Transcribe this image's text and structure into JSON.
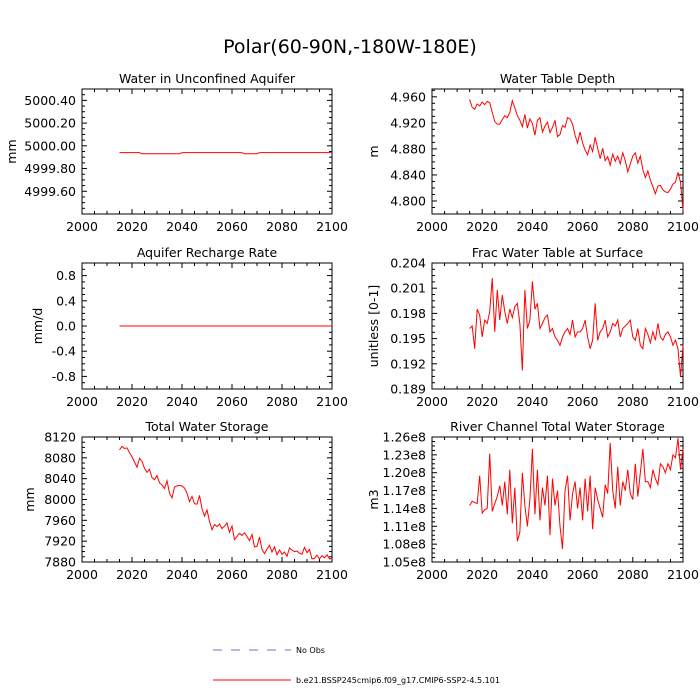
{
  "figure": {
    "title": "Polar(60-90N,-180W-180E)",
    "series_color": "#ff0000",
    "obs_color": "#7070c0"
  },
  "legend": {
    "obs_label": "No Obs",
    "model_label": "b.e21.BSSP245cmip6.f09_g17.CMIP6-SSP2-4.5.101"
  },
  "chart_data": [
    {
      "type": "line",
      "position": "top-left",
      "title": "Water in Unconfined Aquifer",
      "xlabel": "",
      "ylabel": "mm",
      "xlim": [
        2000,
        2100
      ],
      "ylim": [
        4999.4,
        5000.5
      ],
      "xticks": [
        "2000",
        "2020",
        "2040",
        "2060",
        "2080",
        "2100"
      ],
      "yticks": [
        {
          "v": 4999.6,
          "label": "4999.60"
        },
        {
          "v": 4999.8,
          "label": "4999.80"
        },
        {
          "v": 5000.0,
          "label": "5000.00"
        },
        {
          "v": 5000.2,
          "label": "5000.20"
        },
        {
          "v": 5000.4,
          "label": "5000.40"
        }
      ],
      "series": [
        {
          "name": "b.e21.BSSP245cmip6.f09_g17.CMIP6-SSP2-4.5.101",
          "x": [
            2015,
            2023,
            2024,
            2039,
            2040,
            2064,
            2065,
            2070,
            2071,
            2100
          ],
          "y": [
            4999.94,
            4999.94,
            4999.93,
            4999.93,
            4999.94,
            4999.94,
            4999.93,
            4999.93,
            4999.94,
            4999.94
          ]
        }
      ]
    },
    {
      "type": "line",
      "position": "top-right",
      "title": "Water Table Depth",
      "xlabel": "",
      "ylabel": "m",
      "xlim": [
        2000,
        2100
      ],
      "ylim": [
        4.78,
        4.972
      ],
      "xticks": [
        "2000",
        "2020",
        "2040",
        "2060",
        "2080",
        "2100"
      ],
      "yticks": [
        {
          "v": 4.8,
          "label": "4.800"
        },
        {
          "v": 4.84,
          "label": "4.840"
        },
        {
          "v": 4.88,
          "label": "4.880"
        },
        {
          "v": 4.92,
          "label": "4.920"
        },
        {
          "v": 4.96,
          "label": "4.960"
        }
      ],
      "series": [
        {
          "name": "b.e21.BSSP245cmip6.f09_g17.CMIP6-SSP2-4.5.101",
          "x": [
            2015,
            2016,
            2017,
            2018,
            2019,
            2020,
            2021,
            2022,
            2023,
            2024,
            2025,
            2026,
            2027,
            2028,
            2029,
            2030,
            2031,
            2032,
            2033,
            2034,
            2035,
            2036,
            2037,
            2038,
            2039,
            2040,
            2041,
            2042,
            2043,
            2044,
            2045,
            2046,
            2047,
            2048,
            2049,
            2050,
            2051,
            2052,
            2053,
            2054,
            2055,
            2056,
            2057,
            2058,
            2059,
            2060,
            2061,
            2062,
            2063,
            2064,
            2065,
            2066,
            2067,
            2068,
            2069,
            2070,
            2071,
            2072,
            2073,
            2074,
            2075,
            2076,
            2077,
            2078,
            2079,
            2080,
            2081,
            2082,
            2083,
            2084,
            2085,
            2086,
            2087,
            2088,
            2089,
            2090,
            2091,
            2092,
            2093,
            2094,
            2095,
            2096,
            2097,
            2098,
            2099,
            2100
          ],
          "y": [
            4.956,
            4.944,
            4.941,
            4.949,
            4.946,
            4.952,
            4.948,
            4.953,
            4.951,
            4.936,
            4.922,
            4.918,
            4.918,
            4.925,
            4.931,
            4.928,
            4.936,
            4.954,
            4.943,
            4.931,
            4.924,
            4.914,
            4.933,
            4.912,
            4.926,
            4.919,
            4.901,
            4.924,
            4.928,
            4.906,
            4.915,
            4.921,
            4.905,
            4.913,
            4.924,
            4.899,
            4.902,
            4.916,
            4.913,
            4.928,
            4.926,
            4.918,
            4.901,
            4.889,
            4.906,
            4.889,
            4.878,
            4.871,
            4.886,
            4.876,
            4.898,
            4.881,
            4.865,
            4.881,
            4.862,
            4.868,
            4.855,
            4.872,
            4.861,
            4.869,
            4.857,
            4.874,
            4.862,
            4.845,
            4.857,
            4.869,
            4.874,
            4.858,
            4.869,
            4.848,
            4.836,
            4.846,
            4.832,
            4.822,
            4.811,
            4.823,
            4.824,
            4.817,
            4.814,
            4.813,
            4.818,
            4.826,
            4.829,
            4.844,
            4.829,
            4.786
          ]
        }
      ]
    },
    {
      "type": "line",
      "position": "middle-left",
      "title": "Aquifer Recharge Rate",
      "xlabel": "",
      "ylabel": "mm/d",
      "xlim": [
        2000,
        2100
      ],
      "ylim": [
        -1.0,
        1.0
      ],
      "xticks": [
        "2000",
        "2020",
        "2040",
        "2060",
        "2080",
        "2100"
      ],
      "yticks": [
        {
          "v": -0.8,
          "label": "-0.8"
        },
        {
          "v": -0.4,
          "label": "-0.4"
        },
        {
          "v": 0.0,
          "label": "0.0"
        },
        {
          "v": 0.4,
          "label": "0.4"
        },
        {
          "v": 0.8,
          "label": "0.8"
        }
      ],
      "series": [
        {
          "name": "b.e21.BSSP245cmip6.f09_g17.CMIP6-SSP2-4.5.101",
          "x": [
            2015,
            2100
          ],
          "y": [
            0.0,
            0.0
          ]
        }
      ]
    },
    {
      "type": "line",
      "position": "middle-right",
      "title": "Frac Water Table at Surface",
      "xlabel": "",
      "ylabel": "unitless [0-1]",
      "xlim": [
        2000,
        2100
      ],
      "ylim": [
        0.189,
        0.204
      ],
      "xticks": [
        "2000",
        "2020",
        "2040",
        "2060",
        "2080",
        "2100"
      ],
      "yticks": [
        {
          "v": 0.189,
          "label": "0.189"
        },
        {
          "v": 0.192,
          "label": "0.192"
        },
        {
          "v": 0.195,
          "label": "0.195"
        },
        {
          "v": 0.198,
          "label": "0.198"
        },
        {
          "v": 0.201,
          "label": "0.201"
        },
        {
          "v": 0.204,
          "label": "0.204"
        }
      ],
      "series": [
        {
          "name": "b.e21.BSSP245cmip6.f09_g17.CMIP6-SSP2-4.5.101",
          "x": [
            2015,
            2016,
            2017,
            2018,
            2019,
            2020,
            2021,
            2022,
            2023,
            2024,
            2025,
            2026,
            2027,
            2028,
            2029,
            2030,
            2031,
            2032,
            2033,
            2034,
            2035,
            2036,
            2037,
            2038,
            2039,
            2040,
            2041,
            2042,
            2043,
            2044,
            2045,
            2046,
            2047,
            2048,
            2049,
            2050,
            2051,
            2052,
            2053,
            2054,
            2055,
            2056,
            2057,
            2058,
            2059,
            2060,
            2061,
            2062,
            2063,
            2064,
            2065,
            2066,
            2067,
            2068,
            2069,
            2070,
            2071,
            2072,
            2073,
            2074,
            2075,
            2076,
            2077,
            2078,
            2079,
            2080,
            2081,
            2082,
            2083,
            2084,
            2085,
            2086,
            2087,
            2088,
            2089,
            2090,
            2091,
            2092,
            2093,
            2094,
            2095,
            2096,
            2097,
            2098,
            2099,
            2100
          ],
          "y": [
            0.1962,
            0.1965,
            0.1938,
            0.1985,
            0.1978,
            0.1952,
            0.1972,
            0.1968,
            0.1982,
            0.2022,
            0.1958,
            0.2008,
            0.1972,
            0.2002,
            0.1982,
            0.1968,
            0.1985,
            0.1975,
            0.1988,
            0.1992,
            0.1968,
            0.1912,
            0.2008,
            0.1962,
            0.1972,
            0.2018,
            0.1985,
            0.1992,
            0.1962,
            0.1968,
            0.1975,
            0.1978,
            0.1958,
            0.1962,
            0.1952,
            0.1948,
            0.1942,
            0.1952,
            0.1958,
            0.1962,
            0.1955,
            0.1972,
            0.1952,
            0.1958,
            0.1958,
            0.1962,
            0.1972,
            0.1952,
            0.1938,
            0.1948,
            0.1992,
            0.1948,
            0.1958,
            0.1962,
            0.1972,
            0.1952,
            0.1958,
            0.1968,
            0.1965,
            0.1972,
            0.1952,
            0.1962,
            0.1965,
            0.1968,
            0.1972,
            0.1952,
            0.1948,
            0.1962,
            0.1942,
            0.1938,
            0.1962,
            0.1955,
            0.1945,
            0.1958,
            0.1948,
            0.1968,
            0.1952,
            0.1948,
            0.1955,
            0.1958,
            0.1952,
            0.1942,
            0.1948,
            0.1938,
            0.1905,
            0.1942
          ]
        }
      ]
    },
    {
      "type": "line",
      "position": "bottom-left",
      "title": "Total Water Storage",
      "xlabel": "",
      "ylabel": "mm",
      "xlim": [
        2000,
        2100
      ],
      "ylim": [
        7880,
        8120
      ],
      "xticks": [
        "2000",
        "2020",
        "2040",
        "2060",
        "2080",
        "2100"
      ],
      "yticks": [
        {
          "v": 7880,
          "label": "7880"
        },
        {
          "v": 7920,
          "label": "7920"
        },
        {
          "v": 7960,
          "label": "7960"
        },
        {
          "v": 8000,
          "label": "8000"
        },
        {
          "v": 8040,
          "label": "8040"
        },
        {
          "v": 8080,
          "label": "8080"
        },
        {
          "v": 8120,
          "label": "8120"
        }
      ],
      "series": [
        {
          "name": "b.e21.BSSP245cmip6.f09_g17.CMIP6-SSP2-4.5.101",
          "x": [
            2015,
            2016,
            2017,
            2018,
            2019,
            2020,
            2021,
            2022,
            2023,
            2024,
            2025,
            2026,
            2027,
            2028,
            2029,
            2030,
            2031,
            2032,
            2033,
            2034,
            2035,
            2036,
            2037,
            2038,
            2039,
            2040,
            2041,
            2042,
            2043,
            2044,
            2045,
            2046,
            2047,
            2048,
            2049,
            2050,
            2051,
            2052,
            2053,
            2054,
            2055,
            2056,
            2057,
            2058,
            2059,
            2060,
            2061,
            2062,
            2063,
            2064,
            2065,
            2066,
            2067,
            2068,
            2069,
            2070,
            2071,
            2072,
            2073,
            2074,
            2075,
            2076,
            2077,
            2078,
            2079,
            2080,
            2081,
            2082,
            2083,
            2084,
            2085,
            2086,
            2087,
            2088,
            2089,
            2090,
            2091,
            2092,
            2093,
            2094,
            2095,
            2096,
            2097,
            2098,
            2099,
            2100
          ],
          "y": [
            8095,
            8102,
            8098,
            8099,
            8090,
            8082,
            8072,
            8062,
            8079,
            8073,
            8060,
            8052,
            8058,
            8042,
            8038,
            8046,
            8032,
            8028,
            8021,
            8036,
            8012,
            8003,
            8024,
            8026,
            8027,
            8026,
            8022,
            8012,
            7996,
            8006,
            7992,
            7991,
            8008,
            7982,
            7968,
            7980,
            7958,
            7942,
            7952,
            7948,
            7953,
            7944,
            7949,
            7955,
            7937,
            7949,
            7923,
            7929,
            7935,
            7931,
            7936,
            7929,
            7921,
            7933,
            7909,
            7910,
            7928,
            7904,
            7896,
            7905,
            7912,
            7899,
            7909,
            7894,
            7903,
            7895,
            7899,
            7891,
            7907,
            7903,
            7900,
            7901,
            7897,
            7895,
            7908,
            7898,
            7904,
            7886,
            7887,
            7893,
            7886,
            7892,
            7888,
            7894,
            7886,
            7887
          ]
        }
      ]
    },
    {
      "type": "line",
      "position": "bottom-right",
      "title": "River Channel Total Water Storage",
      "xlabel": "",
      "ylabel": "m3",
      "xlim": [
        2000,
        2100
      ],
      "ylim": [
        105000000.0,
        126000000.0
      ],
      "xticks": [
        "2000",
        "2020",
        "2040",
        "2060",
        "2080",
        "2100"
      ],
      "yticks": [
        {
          "v": 105000000,
          "label": "1.05e8"
        },
        {
          "v": 108000000,
          "label": "1.08e8"
        },
        {
          "v": 111000000,
          "label": "1.11e8"
        },
        {
          "v": 114000000,
          "label": "1.14e8"
        },
        {
          "v": 117000000,
          "label": "1.17e8"
        },
        {
          "v": 120000000,
          "label": "1.20e8"
        },
        {
          "v": 123000000,
          "label": "1.23e8"
        },
        {
          "v": 126000000,
          "label": "1.26e8"
        }
      ],
      "series": [
        {
          "name": "b.e21.BSSP245cmip6.f09_g17.CMIP6-SSP2-4.5.101",
          "x": [
            2015,
            2016,
            2017,
            2018,
            2019,
            2020,
            2021,
            2022,
            2023,
            2024,
            2025,
            2026,
            2027,
            2028,
            2029,
            2030,
            2031,
            2032,
            2033,
            2034,
            2035,
            2036,
            2037,
            2038,
            2039,
            2040,
            2041,
            2042,
            2043,
            2044,
            2045,
            2046,
            2047,
            2048,
            2049,
            2050,
            2051,
            2052,
            2053,
            2054,
            2055,
            2056,
            2057,
            2058,
            2059,
            2060,
            2061,
            2062,
            2063,
            2064,
            2065,
            2066,
            2067,
            2068,
            2069,
            2070,
            2071,
            2072,
            2073,
            2074,
            2075,
            2076,
            2077,
            2078,
            2079,
            2080,
            2081,
            2082,
            2083,
            2084,
            2085,
            2086,
            2087,
            2088,
            2089,
            2090,
            2091,
            2092,
            2093,
            2094,
            2095,
            2096,
            2097,
            2098,
            2099,
            2100
          ],
          "y": [
            114500000,
            115200000,
            115000000,
            114800000,
            119500000,
            113200000,
            113800000,
            114000000,
            123200000,
            113500000,
            114800000,
            116000000,
            117800000,
            114500000,
            118500000,
            113000000,
            120500000,
            111500000,
            117500000,
            108500000,
            110000000,
            120000000,
            114500000,
            111000000,
            115500000,
            124000000,
            113000000,
            120500000,
            112000000,
            117500000,
            114500000,
            119500000,
            109500000,
            119000000,
            114500000,
            117000000,
            111000000,
            107200000,
            117000000,
            119500000,
            112000000,
            116500000,
            118500000,
            114000000,
            117500000,
            112000000,
            119000000,
            113500000,
            119500000,
            110500000,
            117500000,
            115500000,
            114000000,
            112500000,
            118000000,
            116500000,
            125000000,
            117000000,
            114000000,
            121000000,
            114500000,
            118500000,
            117000000,
            120500000,
            116500000,
            115500000,
            121500000,
            116000000,
            120000000,
            124000000,
            118500000,
            118500000,
            117500000,
            120500000,
            119000000,
            118000000,
            121500000,
            121000000,
            120000000,
            121500000,
            120500000,
            123000000,
            122500000,
            125800000,
            120500000,
            124000000
          ]
        }
      ]
    }
  ]
}
